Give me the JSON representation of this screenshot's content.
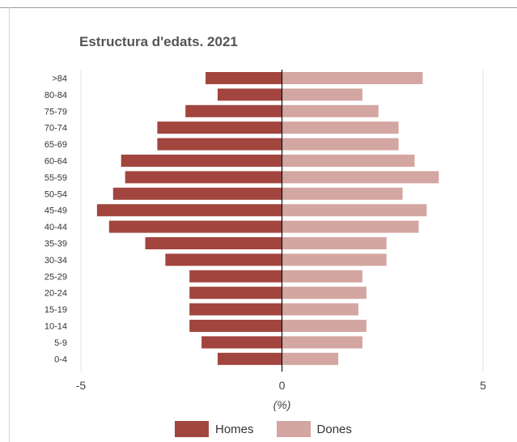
{
  "chart_data": {
    "type": "bar",
    "orientation": "horizontal",
    "subtype": "population-pyramid",
    "title": "Estructura d'edats. 2021",
    "xlabel": "(%)",
    "ylabel": "",
    "xlim": [
      -5,
      5
    ],
    "xticks": [
      "-5",
      "0",
      "5"
    ],
    "categories": [
      ">84",
      "80-84",
      "75-79",
      "70-74",
      "65-69",
      "60-64",
      "55-59",
      "50-54",
      "45-49",
      "40-44",
      "35-39",
      "30-34",
      "25-29",
      "20-24",
      "15-19",
      "10-14",
      "5-9",
      "0-4"
    ],
    "series": [
      {
        "name": "Homes",
        "color": "#a2453f",
        "values": [
          -1.9,
          -1.6,
          -2.4,
          -3.1,
          -3.1,
          -4.0,
          -3.9,
          -4.2,
          -4.6,
          -4.3,
          -3.4,
          -2.9,
          -2.3,
          -2.3,
          -2.3,
          -2.3,
          -2.0,
          -1.6
        ]
      },
      {
        "name": "Dones",
        "color": "#d4a6a1",
        "values": [
          3.5,
          2.0,
          2.4,
          2.9,
          2.9,
          3.3,
          3.9,
          3.0,
          3.6,
          3.4,
          2.6,
          2.6,
          2.0,
          2.1,
          1.9,
          2.1,
          2.0,
          1.4
        ]
      }
    ],
    "grid": true,
    "legend": "bottom"
  }
}
